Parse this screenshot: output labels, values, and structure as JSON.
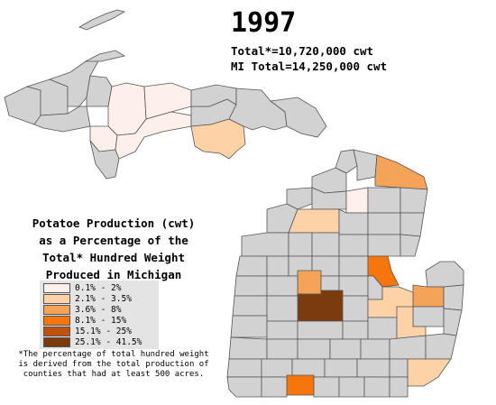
{
  "header": {
    "year": "1997",
    "total_line": "Total*=10,720,000 cwt",
    "mi_total_line": "MI Total=14,250,000 cwt"
  },
  "legend": {
    "title_lines": [
      "Potatoe Production (cwt)",
      "as a Percentage of the",
      "Total* Hundred Weight",
      "Produced in Michigan"
    ],
    "items": [
      {
        "label": "0.1% - 2%",
        "color": "#fdf0ea"
      },
      {
        "label": "2.1% - 3.5%",
        "color": "#fdd2a6"
      },
      {
        "label": "3.6% - 8%",
        "color": "#f6a35a"
      },
      {
        "label": "8.1% - 15%",
        "color": "#f7750d"
      },
      {
        "label": "15.1% - 25%",
        "color": "#c0500c"
      },
      {
        "label": "25.1% - 41.5%",
        "color": "#7b3b0f"
      }
    ],
    "no_data_color": "#d2d2d2"
  },
  "footnote_lines": [
    "*The percentage of total hundred weight",
    "is derived from the total production of",
    "counties that had at least 500 acres."
  ]
}
